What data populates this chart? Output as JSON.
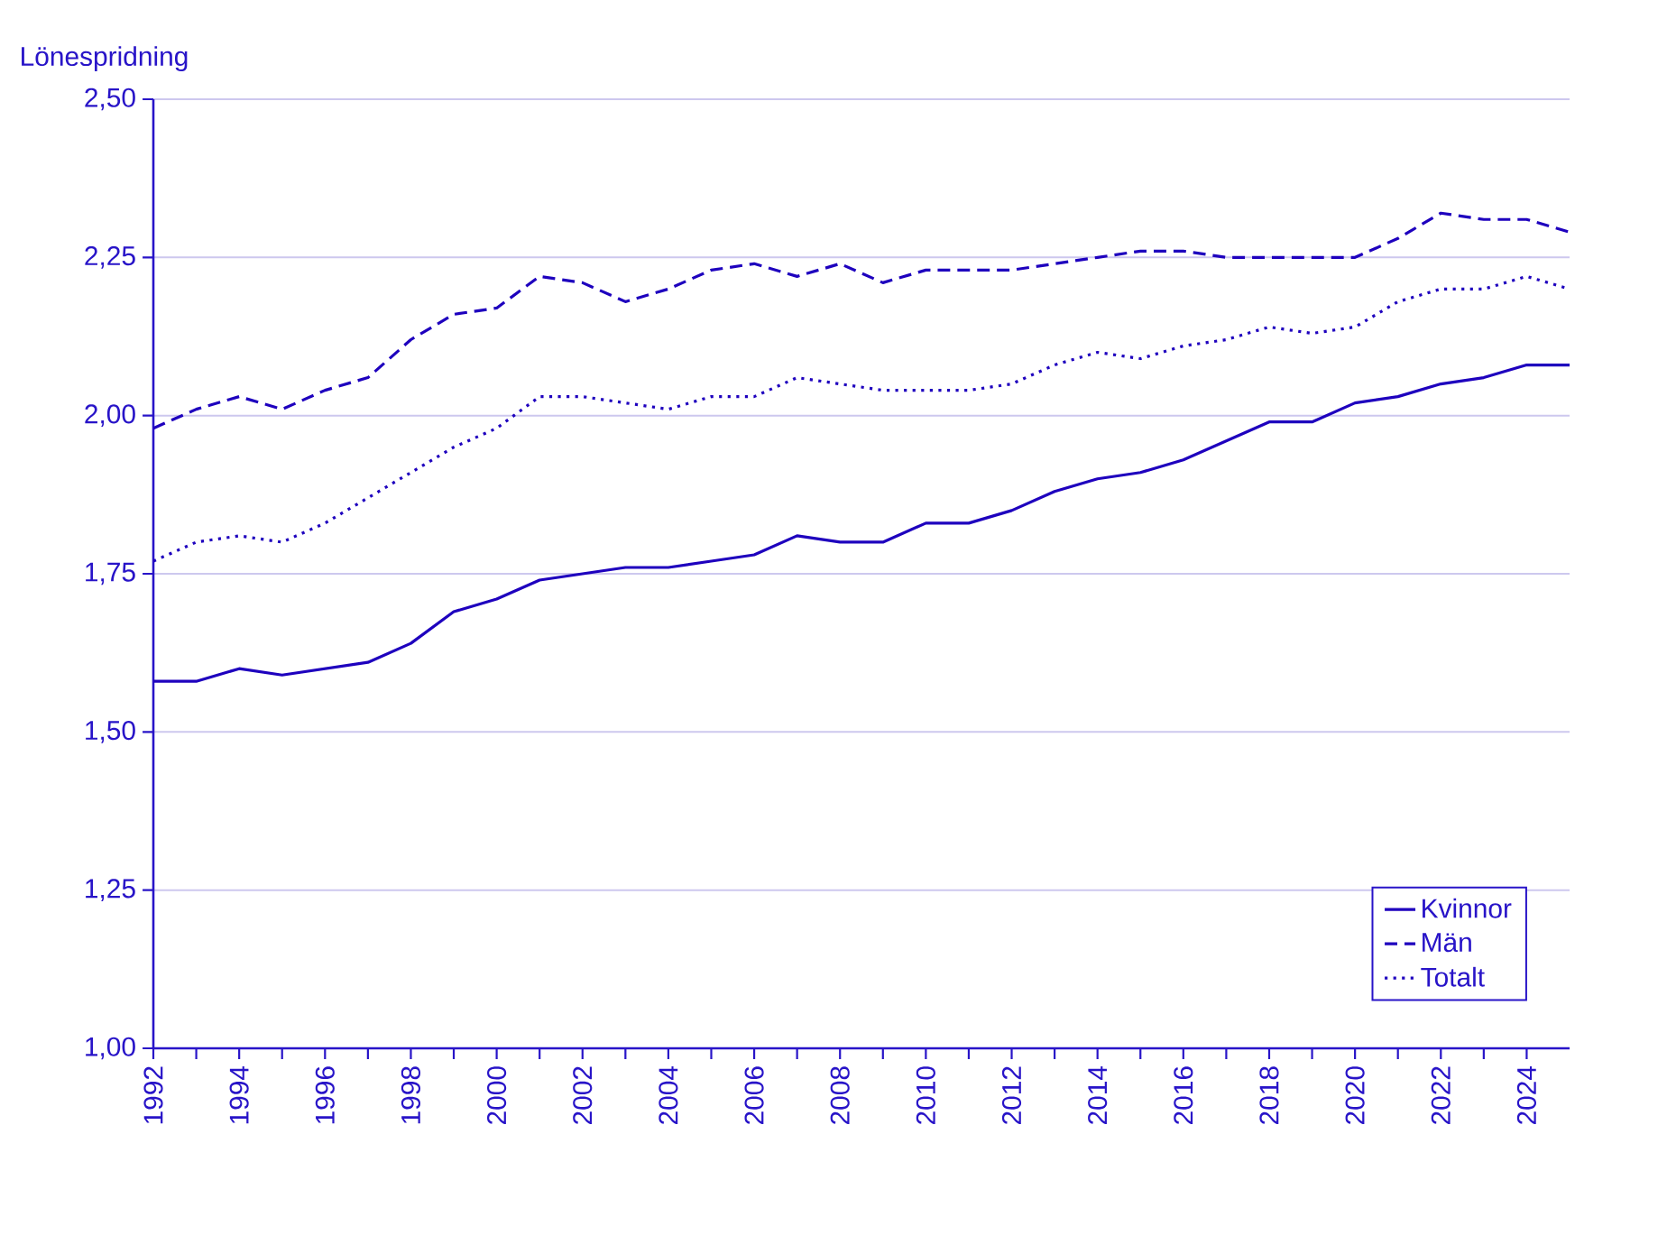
{
  "chart_data": {
    "type": "line",
    "ylabel": "Lönespridning",
    "x": [
      1992,
      1993,
      1994,
      1995,
      1996,
      1997,
      1998,
      1999,
      2000,
      2001,
      2002,
      2003,
      2004,
      2005,
      2006,
      2007,
      2008,
      2009,
      2010,
      2011,
      2012,
      2013,
      2014,
      2015,
      2016,
      2017,
      2018,
      2019,
      2020,
      2021,
      2022,
      2023,
      2024,
      2025
    ],
    "series": [
      {
        "name": "Kvinnor",
        "color": "#1e00be",
        "line_style": "solid",
        "values": [
          1.58,
          1.58,
          1.6,
          1.59,
          1.6,
          1.61,
          1.64,
          1.69,
          1.71,
          1.74,
          1.75,
          1.76,
          1.76,
          1.77,
          1.78,
          1.81,
          1.8,
          1.8,
          1.83,
          1.83,
          1.85,
          1.88,
          1.9,
          1.91,
          1.93,
          1.96,
          1.99,
          1.99,
          2.02,
          2.03,
          2.05,
          2.06,
          2.08,
          2.08
        ]
      },
      {
        "name": "Män",
        "color": "#1e00be",
        "line_style": "dashed",
        "values": [
          1.98,
          2.01,
          2.03,
          2.01,
          2.04,
          2.06,
          2.12,
          2.16,
          2.17,
          2.22,
          2.21,
          2.18,
          2.2,
          2.23,
          2.24,
          2.22,
          2.24,
          2.21,
          2.23,
          2.23,
          2.23,
          2.24,
          2.25,
          2.26,
          2.26,
          2.25,
          2.25,
          2.25,
          2.25,
          2.28,
          2.32,
          2.31,
          2.31,
          2.29
        ]
      },
      {
        "name": "Totalt",
        "color": "#1e00be",
        "line_style": "dotted",
        "values": [
          1.77,
          1.8,
          1.81,
          1.8,
          1.83,
          1.87,
          1.91,
          1.95,
          1.98,
          2.03,
          2.03,
          2.02,
          2.01,
          2.03,
          2.03,
          2.06,
          2.05,
          2.04,
          2.04,
          2.04,
          2.05,
          2.08,
          2.1,
          2.09,
          2.11,
          2.12,
          2.14,
          2.13,
          2.14,
          2.18,
          2.2,
          2.2,
          2.22,
          2.2
        ]
      }
    ],
    "xlim": [
      1992,
      2025
    ],
    "xticks": [
      1992,
      1994,
      1996,
      1998,
      2000,
      2002,
      2004,
      2006,
      2008,
      2010,
      2012,
      2014,
      2016,
      2018,
      2020,
      2022,
      2024
    ],
    "ylim": [
      1.0,
      2.5
    ],
    "yticks": [
      {
        "value": 1.0,
        "label": "1,00"
      },
      {
        "value": 1.25,
        "label": "1,25"
      },
      {
        "value": 1.5,
        "label": "1,50"
      },
      {
        "value": 1.75,
        "label": "1,75"
      },
      {
        "value": 2.0,
        "label": "2,00"
      },
      {
        "value": 2.25,
        "label": "2,25"
      },
      {
        "value": 2.5,
        "label": "2,50"
      }
    ],
    "grid": "y",
    "legend": "bottom right",
    "marker": "none"
  }
}
